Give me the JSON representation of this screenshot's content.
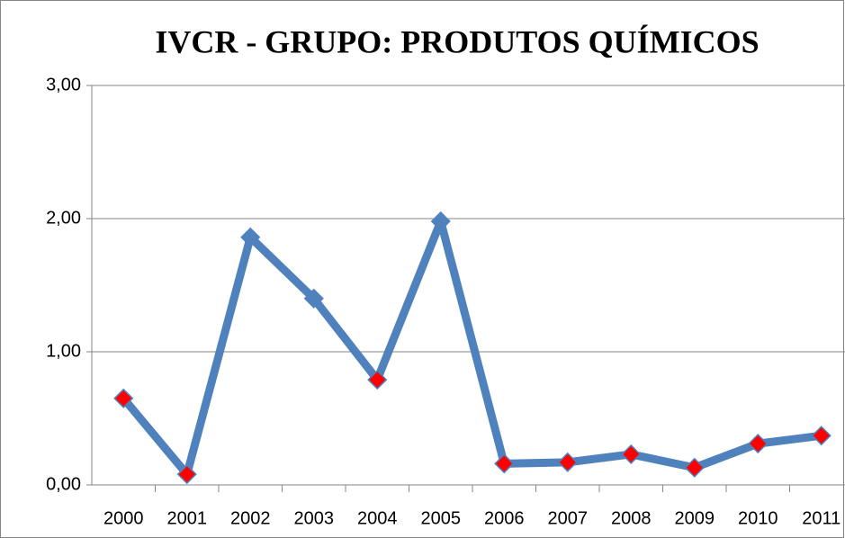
{
  "chart_data": {
    "type": "line",
    "title": "IVCR - GRUPO: PRODUTOS QUÍMICOS",
    "categories": [
      "2000",
      "2001",
      "2002",
      "2003",
      "2004",
      "2005",
      "2006",
      "2007",
      "2008",
      "2009",
      "2010",
      "2011"
    ],
    "series": [
      {
        "color": "#4f81bd",
        "values": [
          0.65,
          0.08,
          1.86,
          1.4,
          0.79,
          1.98,
          0.16,
          0.17,
          0.23,
          0.13,
          0.31,
          0.37
        ],
        "marker_colors": [
          "#ff0000",
          "#ff0000",
          "#4f81bd",
          "#4f81bd",
          "#ff0000",
          "#4f81bd",
          "#ff0000",
          "#ff0000",
          "#ff0000",
          "#ff0000",
          "#ff0000",
          "#ff0000"
        ]
      }
    ],
    "ylim": [
      0,
      3
    ],
    "yticks": [
      {
        "value": 0,
        "label": "0,00"
      },
      {
        "value": 1,
        "label": "1,00"
      },
      {
        "value": 2,
        "label": "2,00"
      },
      {
        "value": 3,
        "label": "3,00"
      }
    ],
    "grid": true
  }
}
